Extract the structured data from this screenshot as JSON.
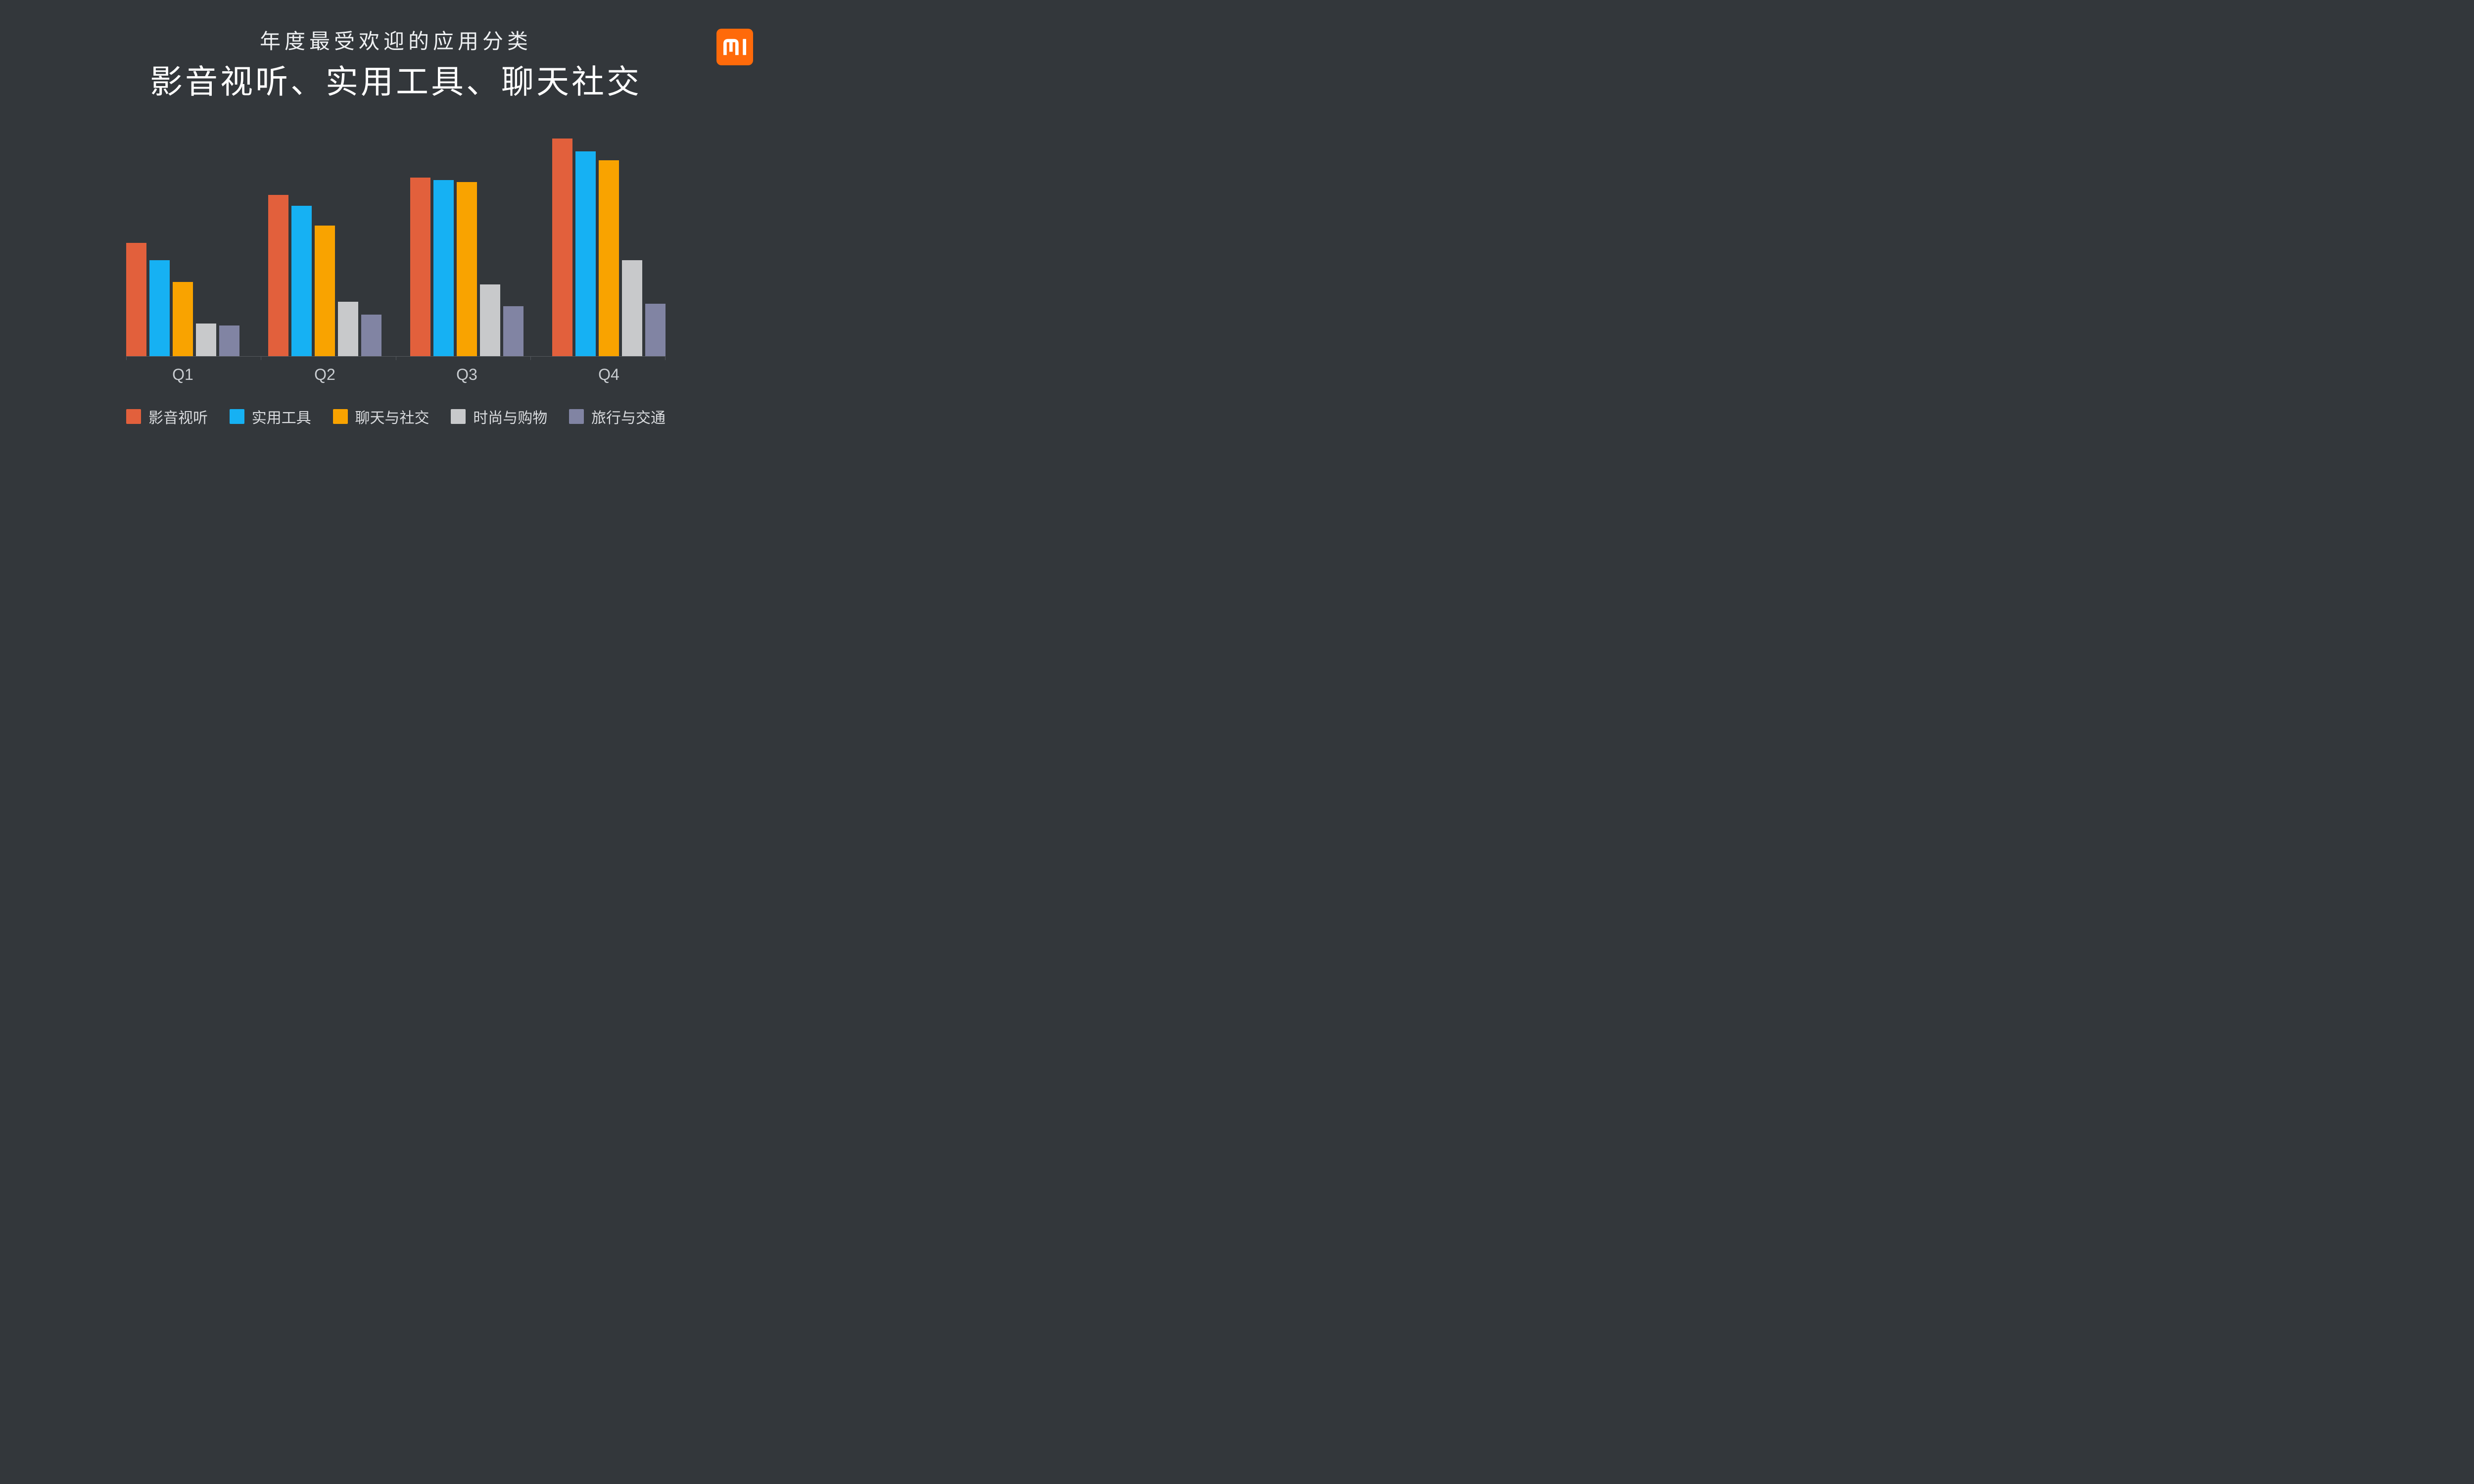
{
  "slide": {
    "background": "#33373b"
  },
  "header": {
    "subtitle": "年度最受欢迎的应用分类",
    "title": "影音视听、实用工具、聊天社交"
  },
  "logo": {
    "label": "MI",
    "background": "#ff6a0a",
    "glyph_color": "#ffffff"
  },
  "chart_data": {
    "type": "bar",
    "categories": [
      "Q1",
      "Q2",
      "Q3",
      "Q4"
    ],
    "series": [
      {
        "name": "影音视听",
        "color": "#e2603c",
        "values": [
          52,
          74,
          82,
          100
        ]
      },
      {
        "name": "实用工具",
        "color": "#16b1f3",
        "values": [
          44,
          69,
          81,
          94
        ]
      },
      {
        "name": "聊天与社交",
        "color": "#f9a300",
        "values": [
          34,
          60,
          80,
          90
        ]
      },
      {
        "name": "时尚与购物",
        "color": "#c8c9cb",
        "values": [
          15,
          25,
          33,
          44
        ]
      },
      {
        "name": "旅行与交通",
        "color": "#8184a3",
        "values": [
          14,
          19,
          23,
          24
        ]
      }
    ],
    "title": "影音视听、实用工具、聊天社交",
    "subtitle": "年度最受欢迎的应用分类",
    "xlabel": "",
    "ylabel": "",
    "ylim": [
      0,
      100
    ],
    "grid": false,
    "axis_color": "#54585d",
    "legend_position": "bottom",
    "background": "#33373b"
  }
}
